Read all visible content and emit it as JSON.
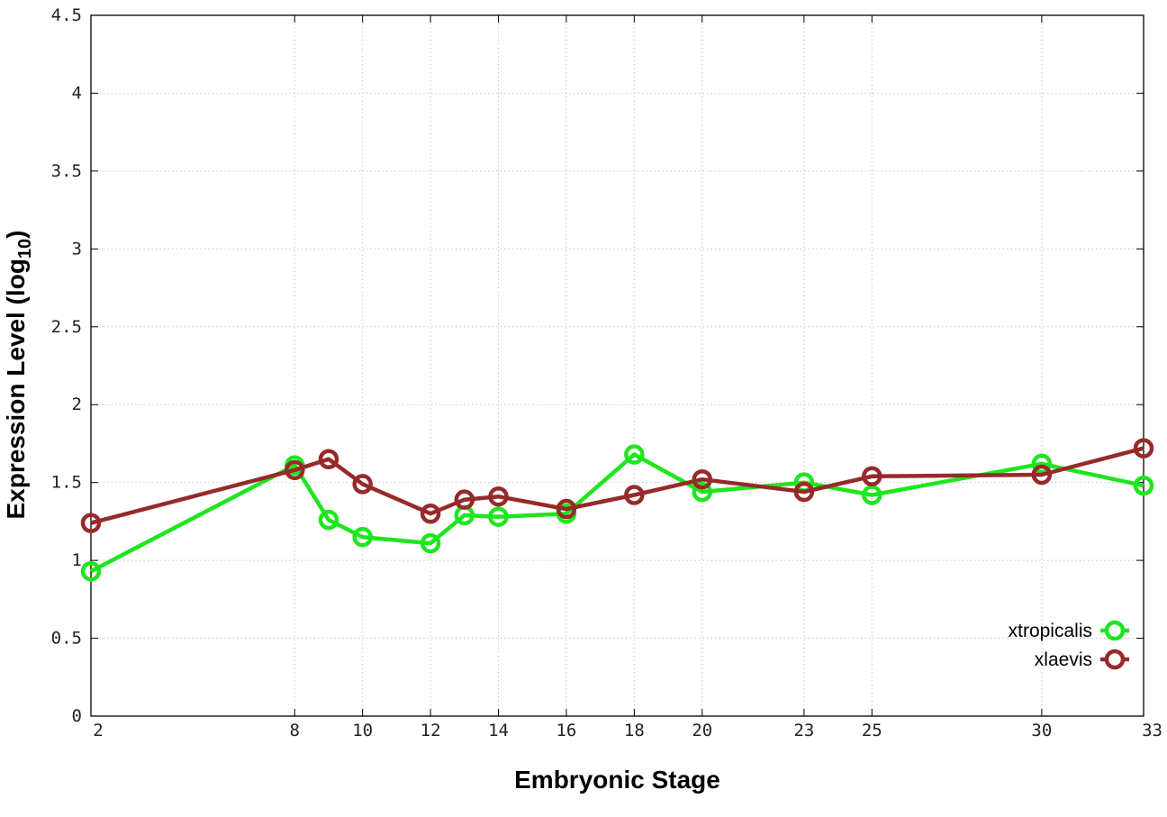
{
  "chart_data": {
    "type": "line",
    "xlabel": "Embryonic Stage",
    "ylabel": {
      "prefix": "Expression Level (log",
      "subscript": "10",
      "suffix": ")"
    },
    "xlim": [
      2,
      33
    ],
    "ylim": [
      0,
      4.5
    ],
    "xticks": [
      2,
      8,
      10,
      12,
      14,
      16,
      18,
      20,
      23,
      25,
      30,
      33
    ],
    "yticks": [
      0,
      0.5,
      1,
      1.5,
      2,
      2.5,
      3,
      3.5,
      4,
      4.5
    ],
    "ytick_labels": [
      "0",
      "0.5",
      "1",
      "1.5",
      "2",
      "2.5",
      "3",
      "3.5",
      "4",
      "4.5"
    ],
    "grid": true,
    "legend_position": "bottom-right",
    "marker": "hollow-circle",
    "series": [
      {
        "name": "xtropicalis",
        "color": "#1ee61e",
        "x": [
          2,
          8,
          9,
          10,
          12,
          13,
          14,
          16,
          18,
          20,
          23,
          25,
          30,
          33
        ],
        "values": [
          0.93,
          1.61,
          1.26,
          1.15,
          1.11,
          1.29,
          1.28,
          1.3,
          1.68,
          1.44,
          1.5,
          1.42,
          1.62,
          1.48
        ]
      },
      {
        "name": "xlaevis",
        "color": "#962a2a",
        "x": [
          2,
          8,
          9,
          10,
          12,
          13,
          14,
          16,
          18,
          20,
          23,
          25,
          30,
          33
        ],
        "values": [
          1.24,
          1.58,
          1.65,
          1.49,
          1.3,
          1.39,
          1.41,
          1.33,
          1.42,
          1.52,
          1.44,
          1.54,
          1.55,
          1.72
        ]
      }
    ]
  }
}
